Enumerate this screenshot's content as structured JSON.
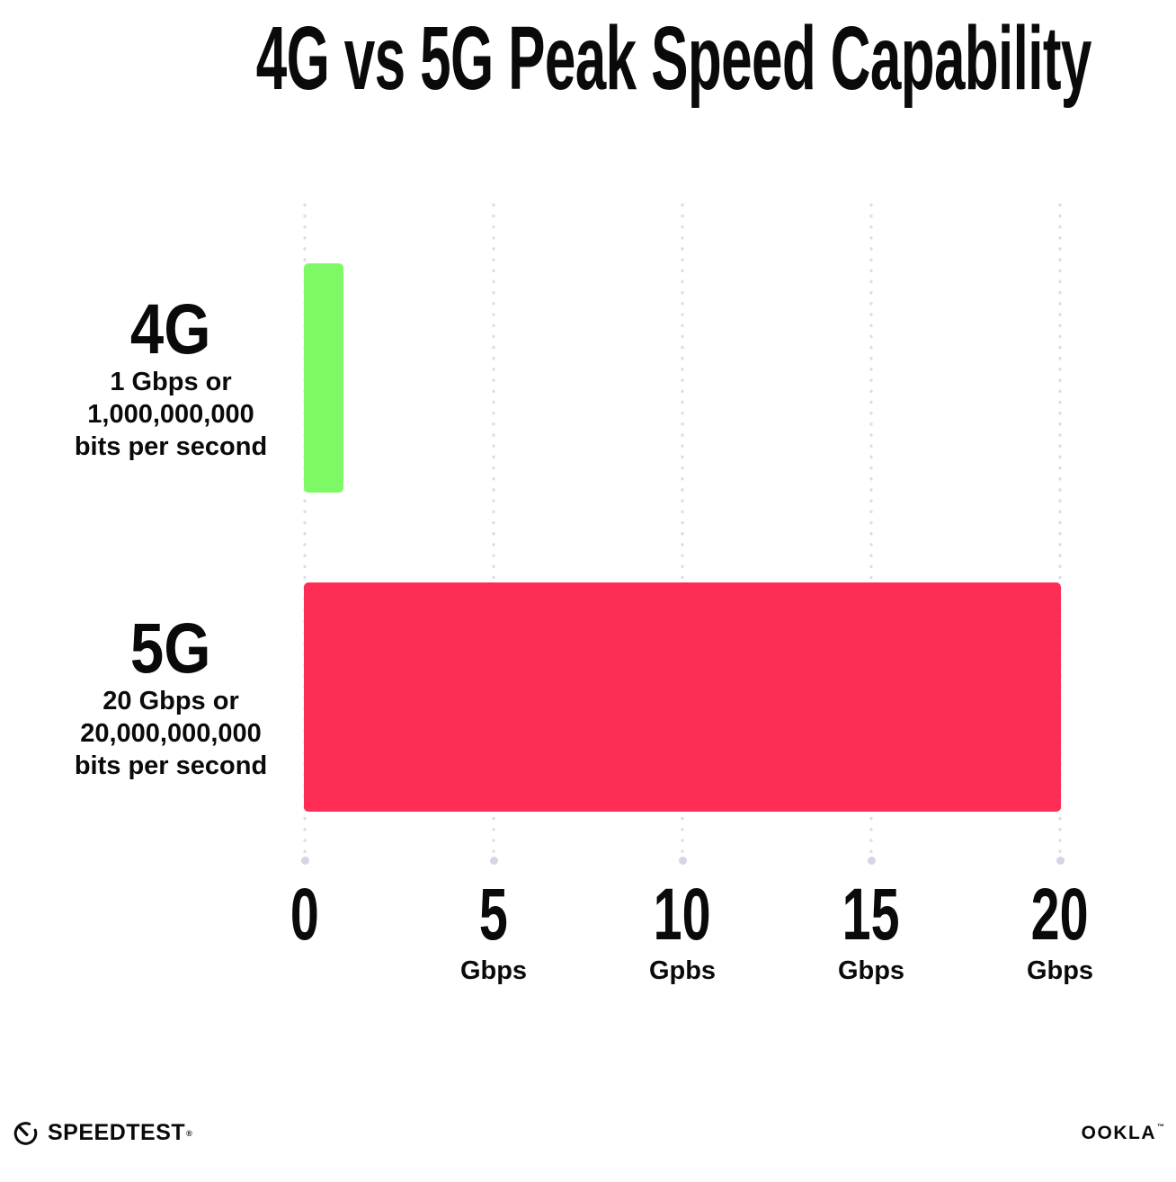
{
  "title": "4G vs 5G Peak Speed Capability",
  "chart_data": {
    "type": "bar",
    "orientation": "horizontal",
    "title": "4G vs 5G Peak Speed Capability",
    "categories": [
      "4G",
      "5G"
    ],
    "values": [
      1,
      20
    ],
    "xlim": [
      0,
      20
    ],
    "x_tick_interval": 5,
    "grid": "vertical-dotted",
    "bars": [
      {
        "label": "4G",
        "value": 1,
        "color": "#7CF964",
        "desc_lines": [
          "1 Gbps or",
          "1,000,000,000",
          "bits per second"
        ]
      },
      {
        "label": "5G",
        "value": 20,
        "color": "#FD2D55",
        "desc_lines": [
          "20 Gbps or",
          "20,000,000,000",
          "bits per second"
        ]
      }
    ],
    "x_ticks": [
      {
        "value": 0,
        "label": "0",
        "unit": ""
      },
      {
        "value": 5,
        "label": "5",
        "unit": "Gbps"
      },
      {
        "value": 10,
        "label": "10",
        "unit": "Gpbs"
      },
      {
        "value": 15,
        "label": "15",
        "unit": "Gbps"
      },
      {
        "value": 20,
        "label": "20",
        "unit": "Gbps"
      }
    ]
  },
  "colors": {
    "bar_4g": "#7CF964",
    "bar_5g": "#FD2D55",
    "grid_dot": "#DBDDE9",
    "grid_end_dot": "#D3D6E4",
    "text": "#0A0A0B",
    "background": "#FFFFFF"
  },
  "footer": {
    "speedtest": "SPEEDTEST",
    "speedtest_mark": "®",
    "ookla": "OOKLA",
    "ookla_mark": "™"
  }
}
